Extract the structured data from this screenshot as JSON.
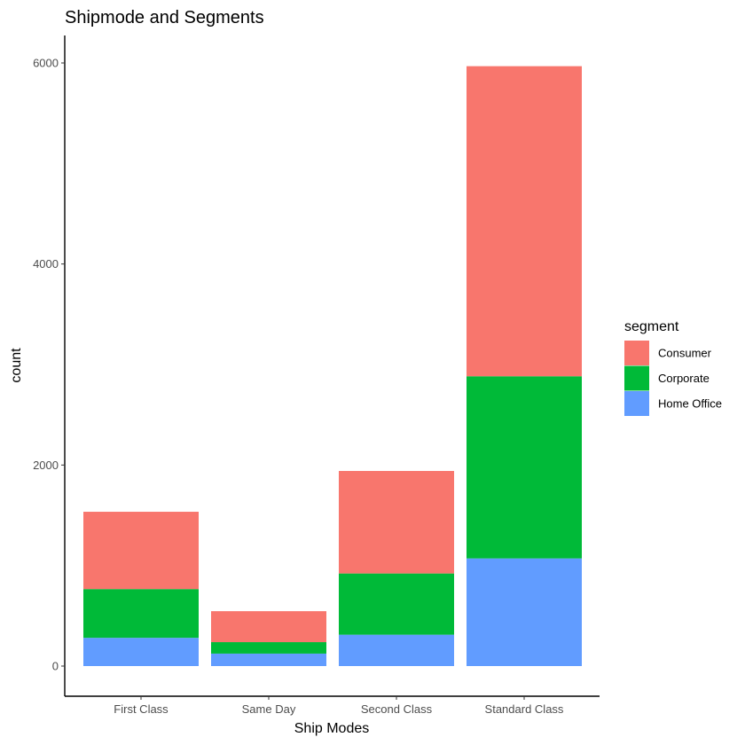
{
  "chart_data": {
    "type": "bar",
    "stacked": true,
    "title": "Shipmode and Segments",
    "xlabel": "Ship Modes",
    "ylabel": "count",
    "categories": [
      "First Class",
      "Same Day",
      "Second Class",
      "Standard Class"
    ],
    "series": [
      {
        "name": "Home Office",
        "values": [
          281,
          124,
          312,
          1071
        ],
        "color": "#619CFF"
      },
      {
        "name": "Corporate",
        "values": [
          485,
          114,
          609,
          1812
        ],
        "color": "#00BA38"
      },
      {
        "name": "Consumer",
        "values": [
          769,
          308,
          1020,
          3085
        ],
        "color": "#F8766D"
      }
    ],
    "ylim": [
      0,
      6000
    ],
    "yticks": [
      0,
      2000,
      4000,
      6000
    ],
    "grid": false,
    "legend": {
      "title": "segment",
      "placement": "right",
      "entries": [
        "Consumer",
        "Corporate",
        "Home Office"
      ]
    }
  }
}
